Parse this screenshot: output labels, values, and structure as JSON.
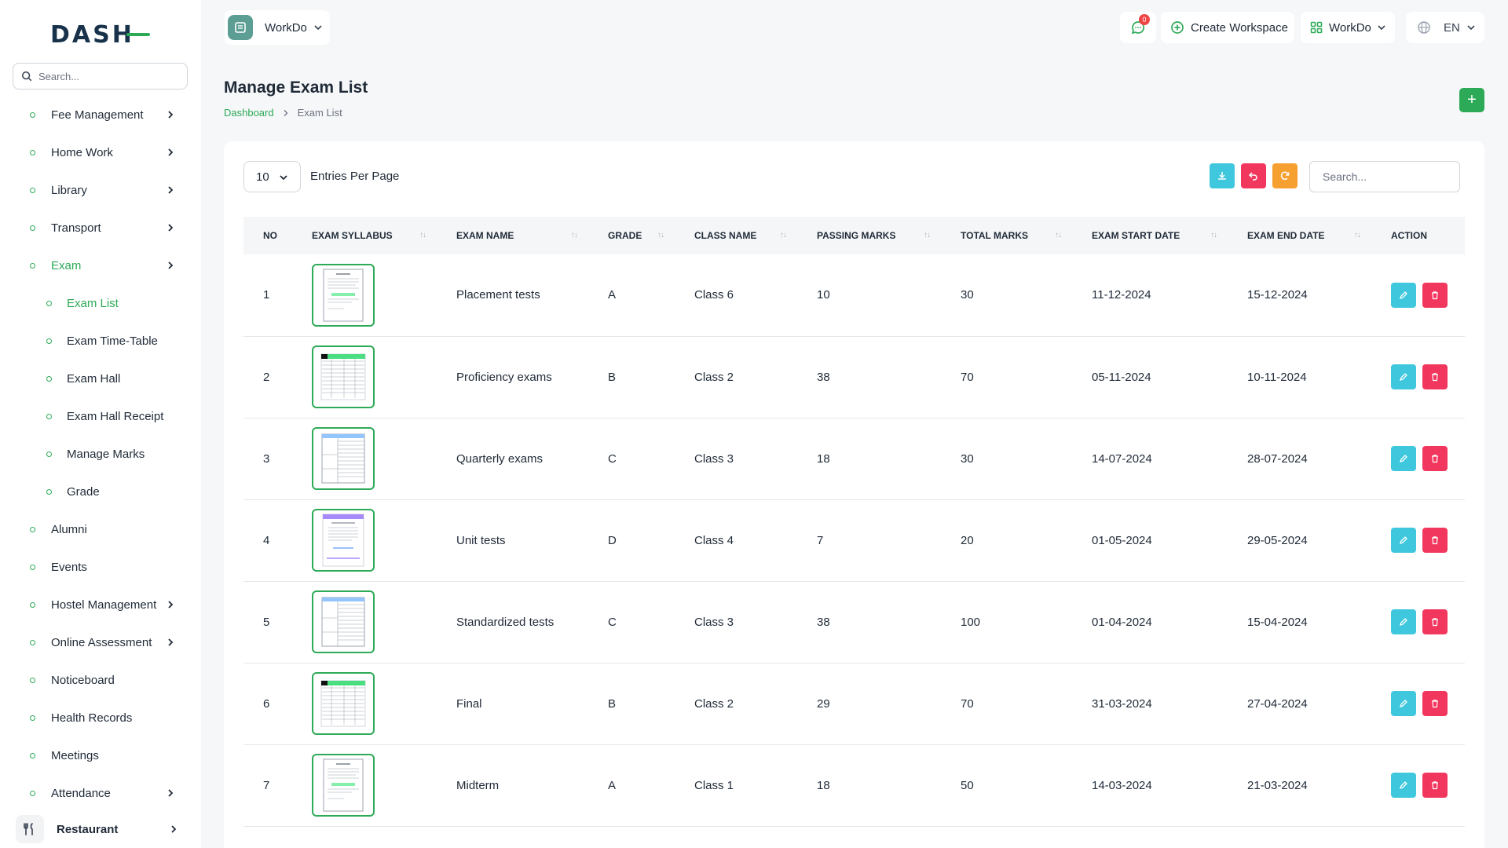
{
  "brand": {
    "logo_text": "DASH"
  },
  "sidebar": {
    "search_placeholder": "Search...",
    "items": [
      {
        "label": "Fee Management",
        "chevron": true,
        "sub": false,
        "active": false
      },
      {
        "label": "Home Work",
        "chevron": true,
        "sub": false,
        "active": false
      },
      {
        "label": "Library",
        "chevron": true,
        "sub": false,
        "active": false
      },
      {
        "label": "Transport",
        "chevron": true,
        "sub": false,
        "active": false
      },
      {
        "label": "Exam",
        "chevron": true,
        "sub": false,
        "active": true
      },
      {
        "label": "Exam List",
        "chevron": false,
        "sub": true,
        "active": true
      },
      {
        "label": "Exam Time-Table",
        "chevron": false,
        "sub": true,
        "active": false
      },
      {
        "label": "Exam Hall",
        "chevron": false,
        "sub": true,
        "active": false
      },
      {
        "label": "Exam Hall Receipt",
        "chevron": false,
        "sub": true,
        "active": false
      },
      {
        "label": "Manage Marks",
        "chevron": false,
        "sub": true,
        "active": false
      },
      {
        "label": "Grade",
        "chevron": false,
        "sub": true,
        "active": false
      },
      {
        "label": "Alumni",
        "chevron": false,
        "sub": false,
        "active": false
      },
      {
        "label": "Events",
        "chevron": false,
        "sub": false,
        "active": false
      },
      {
        "label": "Hostel Management",
        "chevron": true,
        "sub": false,
        "active": false
      },
      {
        "label": "Online Assessment",
        "chevron": true,
        "sub": false,
        "active": false
      },
      {
        "label": "Noticeboard",
        "chevron": false,
        "sub": false,
        "active": false
      },
      {
        "label": "Health Records",
        "chevron": false,
        "sub": false,
        "active": false
      },
      {
        "label": "Meetings",
        "chevron": false,
        "sub": false,
        "active": false
      },
      {
        "label": "Attendance",
        "chevron": true,
        "sub": false,
        "active": false
      }
    ],
    "restaurant_label": "Restaurant"
  },
  "header": {
    "workspace_name": "WorkDo",
    "message_count": "0",
    "create_workspace": "Create Workspace",
    "workdo_label": "WorkDo",
    "language": "EN"
  },
  "page": {
    "title": "Manage Exam List",
    "breadcrumb_home": "Dashboard",
    "breadcrumb_current": "Exam List",
    "add_label": "+"
  },
  "table": {
    "per_page_value": "10",
    "per_page_label": "Entries Per Page",
    "search_placeholder": "Search...",
    "columns": [
      "NO",
      "EXAM SYLLABUS",
      "EXAM NAME",
      "GRADE",
      "CLASS NAME",
      "PASSING MARKS",
      "TOTAL MARKS",
      "EXAM START DATE",
      "EXAM END DATE",
      "ACTION"
    ],
    "rows": [
      {
        "no": "1",
        "thumb": "doc-a",
        "name": "Placement tests",
        "grade": "A",
        "class": "Class 6",
        "passing": "10",
        "total": "30",
        "start": "11-12-2024",
        "end": "15-12-2024"
      },
      {
        "no": "2",
        "thumb": "sheet-green",
        "name": "Proficiency exams",
        "grade": "B",
        "class": "Class 2",
        "passing": "38",
        "total": "70",
        "start": "05-11-2024",
        "end": "10-11-2024"
      },
      {
        "no": "3",
        "thumb": "table-blue",
        "name": "Quarterly exams",
        "grade": "C",
        "class": "Class 3",
        "passing": "18",
        "total": "30",
        "start": "14-07-2024",
        "end": "28-07-2024"
      },
      {
        "no": "4",
        "thumb": "doc-purple",
        "name": "Unit tests",
        "grade": "D",
        "class": "Class 4",
        "passing": "7",
        "total": "20",
        "start": "01-05-2024",
        "end": "29-05-2024"
      },
      {
        "no": "5",
        "thumb": "table-blue",
        "name": "Standardized tests",
        "grade": "C",
        "class": "Class 3",
        "passing": "38",
        "total": "100",
        "start": "01-04-2024",
        "end": "15-04-2024"
      },
      {
        "no": "6",
        "thumb": "sheet-green",
        "name": "Final",
        "grade": "B",
        "class": "Class 2",
        "passing": "29",
        "total": "70",
        "start": "31-03-2024",
        "end": "27-04-2024"
      },
      {
        "no": "7",
        "thumb": "doc-a",
        "name": "Midterm",
        "grade": "A",
        "class": "Class 1",
        "passing": "18",
        "total": "50",
        "start": "14-03-2024",
        "end": "21-03-2024"
      }
    ]
  },
  "colors": {
    "accent": "#2daa57",
    "edit": "#3ec7dd",
    "delete": "#f2375f",
    "refresh": "#f7a032"
  }
}
